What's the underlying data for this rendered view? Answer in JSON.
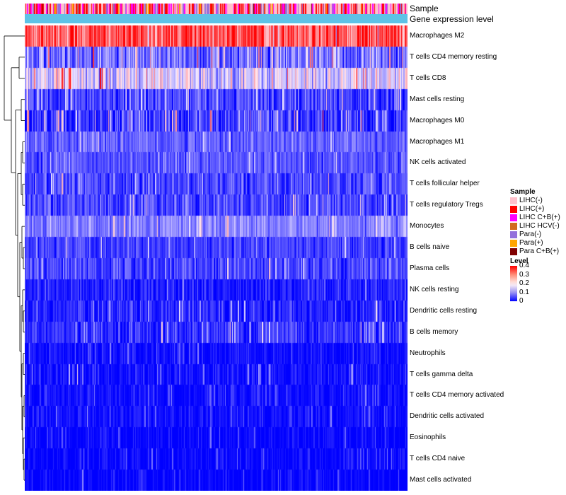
{
  "chart_data": {
    "type": "heatmap",
    "title": "",
    "annotations": {
      "sample_label": "Sample",
      "expression_label": "Gene expression level"
    },
    "rows": [
      {
        "name": "Macrophages M2",
        "mean": 0.33,
        "spread": 0.09
      },
      {
        "name": "T cells CD4 memory resting",
        "mean": 0.09,
        "spread": 0.08
      },
      {
        "name": "T cells CD8",
        "mean": 0.17,
        "spread": 0.07
      },
      {
        "name": "Mast cells resting",
        "mean": 0.06,
        "spread": 0.06
      },
      {
        "name": "Macrophages M0",
        "mean": 0.05,
        "spread": 0.08
      },
      {
        "name": "Macrophages M1",
        "mean": 0.08,
        "spread": 0.04
      },
      {
        "name": "NK cells activated",
        "mean": 0.07,
        "spread": 0.04
      },
      {
        "name": "T cells follicular helper",
        "mean": 0.06,
        "spread": 0.05
      },
      {
        "name": "T cells regulatory  Tregs",
        "mean": 0.06,
        "spread": 0.05
      },
      {
        "name": "Monocytes",
        "mean": 0.11,
        "spread": 0.04
      },
      {
        "name": "B cells naive",
        "mean": 0.05,
        "spread": 0.04
      },
      {
        "name": "Plasma cells",
        "mean": 0.06,
        "spread": 0.05
      },
      {
        "name": "NK cells resting",
        "mean": 0.02,
        "spread": 0.04
      },
      {
        "name": "Dendritic cells resting",
        "mean": 0.03,
        "spread": 0.05
      },
      {
        "name": "B cells memory",
        "mean": 0.04,
        "spread": 0.05
      },
      {
        "name": "Neutrophils",
        "mean": 0.01,
        "spread": 0.03
      },
      {
        "name": "T cells gamma delta",
        "mean": 0.01,
        "spread": 0.04
      },
      {
        "name": "T cells CD4 memory activated",
        "mean": 0.01,
        "spread": 0.03
      },
      {
        "name": "Dendritic cells activated",
        "mean": 0.01,
        "spread": 0.03
      },
      {
        "name": "Eosinophils",
        "mean": 0.0,
        "spread": 0.03
      },
      {
        "name": "T cells CD4 naive",
        "mean": 0.0,
        "spread": 0.03
      },
      {
        "name": "Mast cells activated",
        "mean": 0.0,
        "spread": 0.03
      }
    ],
    "n_samples": 430,
    "value_range": [
      0,
      0.4
    ],
    "legend": {
      "position": "right",
      "sample_title": "Sample",
      "sample_groups": [
        {
          "label": "LIHC(-)",
          "color": "#ffc0cb"
        },
        {
          "label": "LIHC(+)",
          "color": "#ff0000"
        },
        {
          "label": "LIHC C+B(+)",
          "color": "#ff00ff"
        },
        {
          "label": "LIHC HCV(-)",
          "color": "#d2691e"
        },
        {
          "label": "Para(-)",
          "color": "#9370db"
        },
        {
          "label": "Para(+)",
          "color": "#ffa500"
        },
        {
          "label": "Para C+B(+)",
          "color": "#800000"
        }
      ],
      "level_title": "Level",
      "level_ticks": [
        "0.4",
        "0.3",
        "0.2",
        "0.1",
        "0"
      ]
    },
    "expression_bar_color": "#5ec2e6"
  }
}
